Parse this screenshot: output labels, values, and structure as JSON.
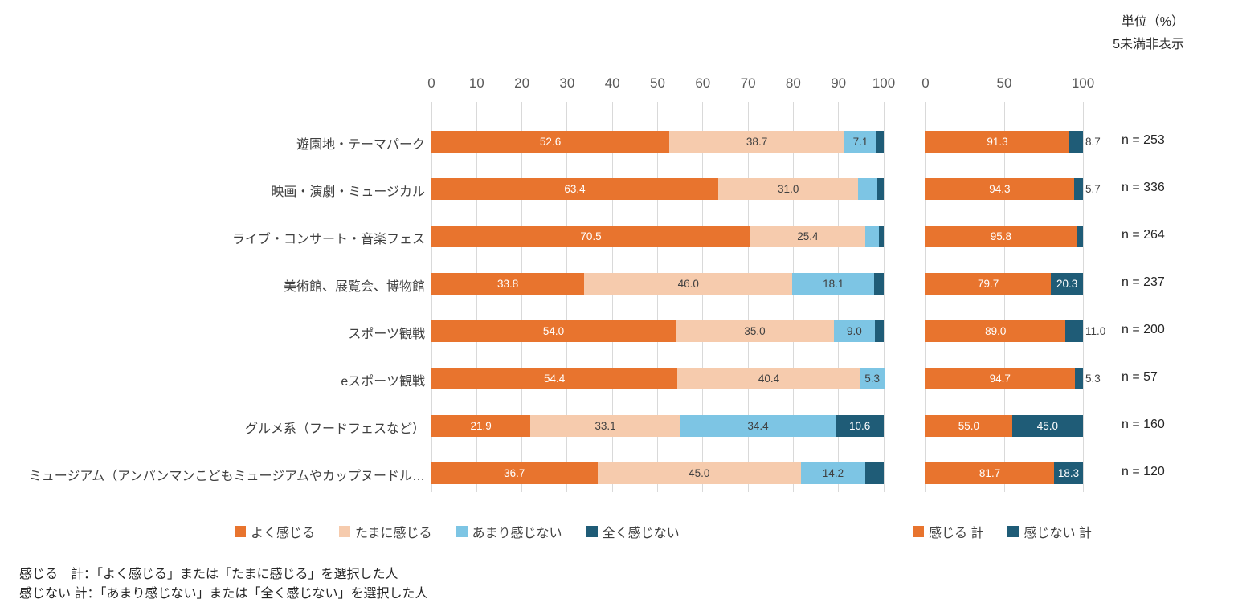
{
  "header": {
    "unit_note": "単位（%）",
    "threshold_note": "5未満非表示"
  },
  "chart_data": {
    "type": "bar",
    "orientation": "horizontal",
    "stacked": true,
    "hidden_label_threshold": 5,
    "categories": [
      "遊園地・テーマパーク",
      "映画・演劇・ミュージカル",
      "ライブ・コンサート・音楽フェス",
      "美術館、展覧会、博物館",
      "スポーツ観戦",
      "eスポーツ観戦",
      "グルメ系（フードフェスなど）",
      "ミュージアム（アンパンマンこどもミュージアムやカップヌードル…"
    ],
    "n_labels": [
      "n = 253",
      "n = 336",
      "n = 264",
      "n = 237",
      "n = 200",
      "n = 57",
      "n = 160",
      "n = 120"
    ],
    "left_panel": {
      "axis_ticks": [
        0,
        10,
        20,
        30,
        40,
        50,
        60,
        70,
        80,
        90,
        100
      ],
      "axis_range": [
        0,
        100
      ],
      "series": [
        {
          "name": "よく感じる",
          "color": "#E8742E",
          "values": [
            52.6,
            63.4,
            70.5,
            33.8,
            54.0,
            54.4,
            21.9,
            36.7
          ]
        },
        {
          "name": "たまに感じる",
          "color": "#F6CBAD",
          "values": [
            38.7,
            31.0,
            25.4,
            46.0,
            35.0,
            40.4,
            33.1,
            45.0
          ]
        },
        {
          "name": "あまり感じない",
          "color": "#7DC5E4",
          "values": [
            7.1,
            4.2,
            3.0,
            18.1,
            9.0,
            5.3,
            34.4,
            14.2
          ]
        },
        {
          "name": "全く感じない",
          "color": "#1F5C77",
          "values": [
            1.6,
            1.4,
            1.1,
            2.1,
            2.0,
            0.0,
            10.6,
            4.1
          ]
        }
      ]
    },
    "right_panel": {
      "axis_ticks": [
        0,
        50,
        100
      ],
      "axis_range": [
        0,
        100
      ],
      "series": [
        {
          "name": "感じる 計",
          "color": "#E8742E",
          "values": [
            91.3,
            94.3,
            95.8,
            79.7,
            89.0,
            94.7,
            55.0,
            81.7
          ]
        },
        {
          "name": "感じない 計",
          "color": "#1F5C77",
          "values": [
            8.7,
            5.7,
            4.2,
            20.3,
            11.0,
            5.3,
            45.0,
            18.3
          ]
        }
      ]
    }
  },
  "footnotes": [
    "感じる　計：「よく感じる」または「たまに感じる」を選択した人",
    "感じない 計：「あまり感じない」または「全く感じない」を選択した人"
  ]
}
